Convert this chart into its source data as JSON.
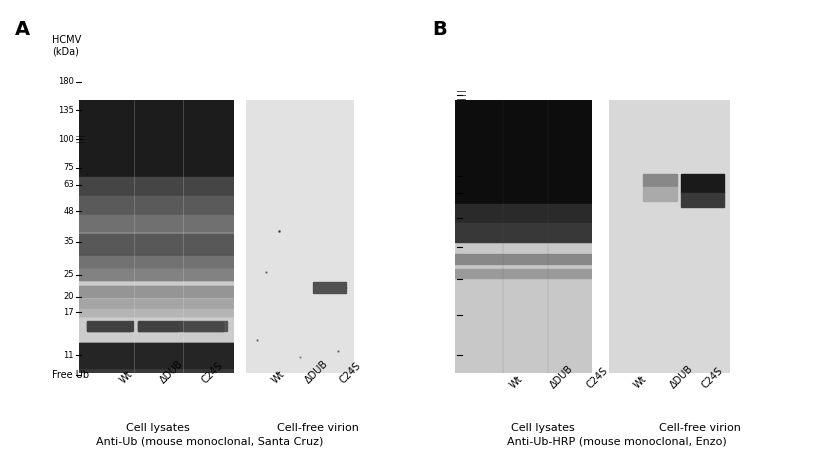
{
  "bg_color": "#ffffff",
  "panel_A_label": "A",
  "panel_B_label": "B",
  "subtitle_A": "Anti-Ub (mouse monoclonal, Santa Cruz)",
  "subtitle_B": "Anti-Ub-HRP (mouse monoclonal, Enzo)",
  "label_cell_lysates": "Cell lysates",
  "label_cell_free": "Cell-free virion",
  "hcmv_label": "HCMV",
  "kdal_label": "(kDa)",
  "free_ub_label": "Free Ub",
  "lane_labels": [
    "Wt",
    "ΔDUB",
    "C24S"
  ],
  "mw_markers_A": [
    "180",
    "135",
    "100",
    "75",
    "63",
    "48",
    "35",
    "25",
    "20",
    "17",
    "11"
  ],
  "mw_markers_B": [
    "",
    "",
    "",
    "",
    "",
    "",
    ""
  ],
  "gel_A_lysate_color": "#c8c8c8",
  "gel_A_virion_color": "#d8d8d8",
  "gel_B_lysate_color": "#b0b0b0",
  "gel_B_virion_color": "#d0d0d0"
}
